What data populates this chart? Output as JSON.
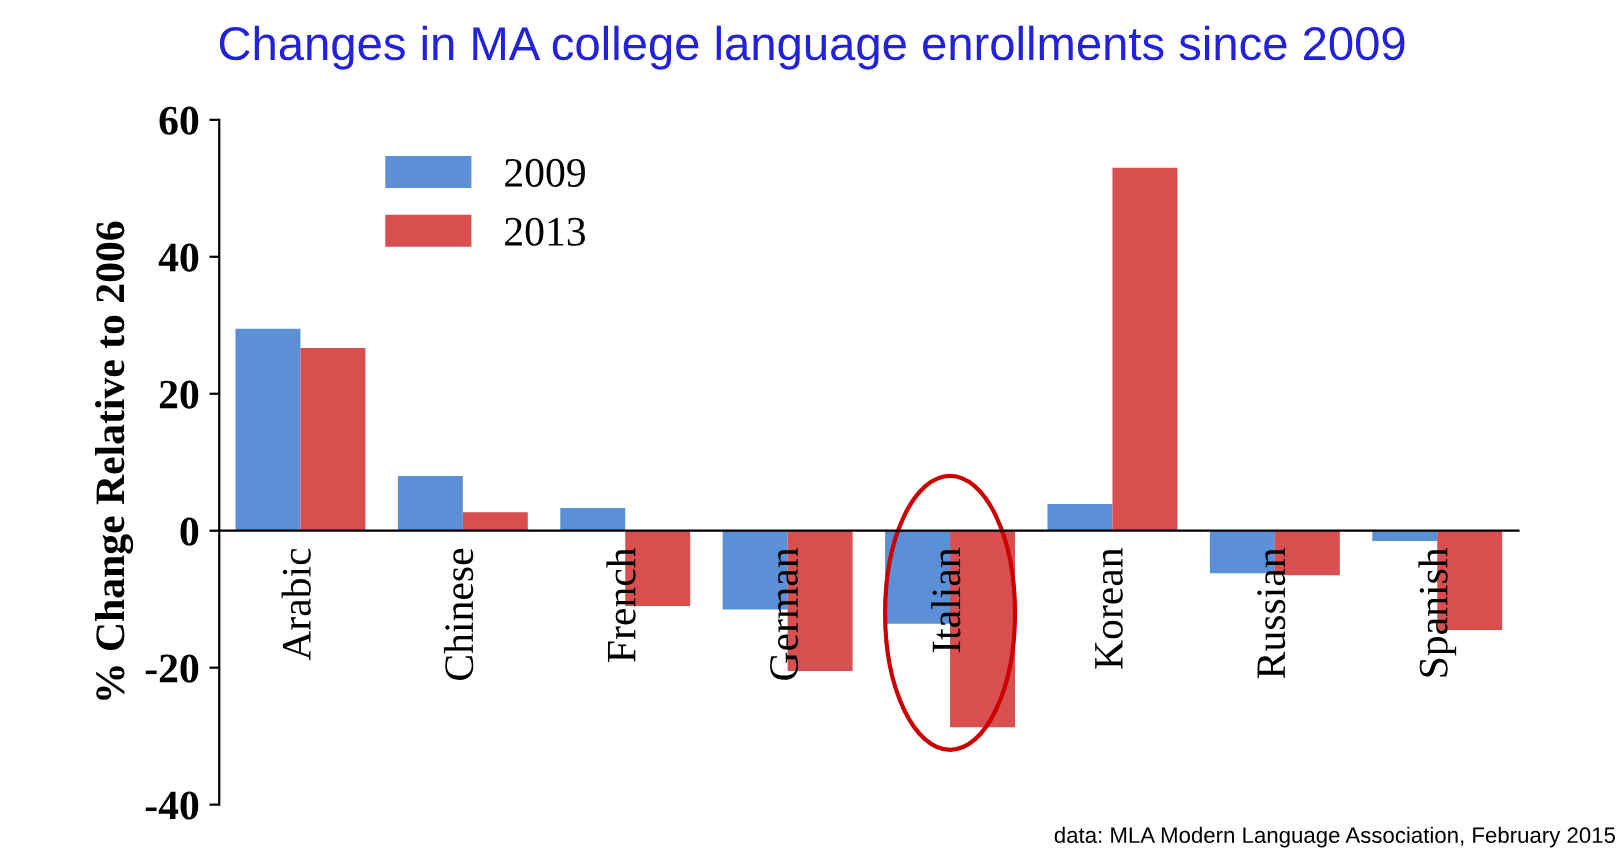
{
  "chart_data": {
    "type": "bar",
    "title": "Changes in MA college language enrollments since 2009",
    "ylabel": "% Change Relative to 2006",
    "categories": [
      "Arabic",
      "Chinese",
      "French",
      "German",
      "Italian",
      "Korean",
      "Russian",
      "Spanish"
    ],
    "series": [
      {
        "name": "2009",
        "color": "#5b8fd6",
        "values": [
          29.5,
          8,
          3.3,
          -11.5,
          -13.6,
          3.9,
          -6.2,
          -1.5
        ]
      },
      {
        "name": "2013",
        "color": "#d94f4f",
        "values": [
          26.7,
          2.7,
          -11,
          -20.5,
          -28.7,
          53,
          -6.5,
          -14.5
        ]
      }
    ],
    "ylim": [
      -40,
      60
    ],
    "yticks": [
      -40,
      -20,
      0,
      20,
      40,
      60
    ],
    "grid": false,
    "legend": "top left",
    "annotations": [
      "data: MLA Modern Language Association, February 2015"
    ]
  }
}
